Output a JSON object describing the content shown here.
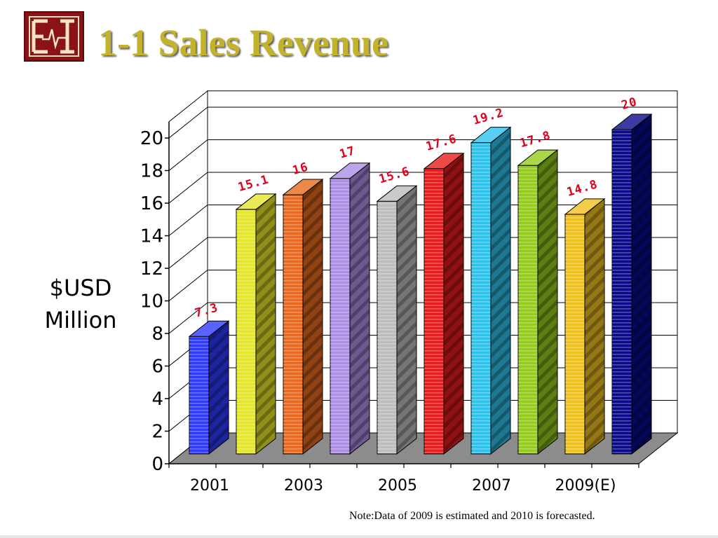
{
  "slide": {
    "title": "1-1 Sales Revenue",
    "ylabel_line1": "$USD",
    "ylabel_line2": "Million",
    "note": "Note:Data of 2009 is estimated and 2010 is forecasted."
  },
  "logo": {
    "icon": "ei-monogram-logo",
    "text": "EI",
    "color": "#8b1216"
  },
  "chart_data": {
    "type": "bar",
    "title": "1-1 Sales Revenue",
    "ylabel": "$USD Million",
    "xlabel": "",
    "ylim": [
      0,
      20
    ],
    "yticks": [
      0,
      2,
      4,
      6,
      8,
      10,
      12,
      14,
      16,
      18,
      20
    ],
    "grid": true,
    "legend": "none",
    "three_d": true,
    "categories": [
      "2001",
      "",
      "2003",
      "",
      "2005",
      "",
      "2007",
      "",
      "2009(E)",
      ""
    ],
    "values": [
      7.3,
      15.1,
      16,
      17,
      15.6,
      17.6,
      19.2,
      17.8,
      14.8,
      20
    ],
    "value_labels": [
      "7.3",
      "15.1",
      "16",
      "17",
      "15.6",
      "17.6",
      "19.2",
      "17.8",
      "14.8",
      "20"
    ],
    "bar_colors": [
      "#2f3cff",
      "#e6e62a",
      "#e96a1e",
      "#ad8fe6",
      "#bdbdbd",
      "#e81c1c",
      "#2ec3ec",
      "#95cc1e",
      "#f0c21e",
      "#0a0a8a"
    ],
    "label_color": "#e0001a"
  }
}
